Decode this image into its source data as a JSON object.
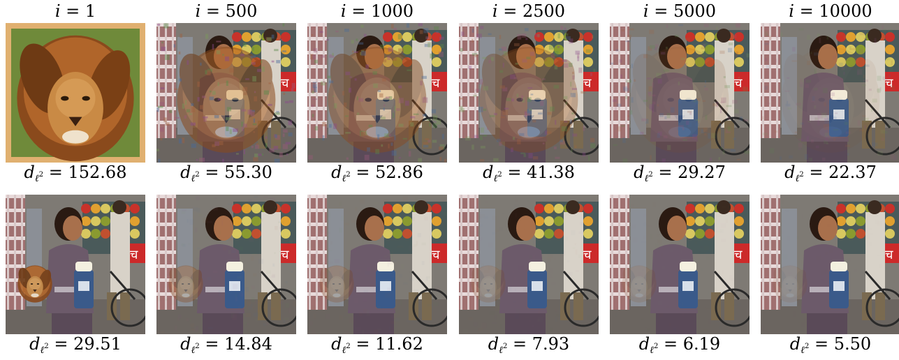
{
  "header": {
    "columns": [
      {
        "var": "i",
        "eq": " = ",
        "value": "1"
      },
      {
        "var": "i",
        "eq": " = ",
        "value": "500"
      },
      {
        "var": "i",
        "eq": " = ",
        "value": "1000"
      },
      {
        "var": "i",
        "eq": " = ",
        "value": "2500"
      },
      {
        "var": "i",
        "eq": " = ",
        "value": "5000"
      },
      {
        "var": "i",
        "eq": " = ",
        "value": "10000"
      }
    ]
  },
  "distance_label": {
    "symbol": "d",
    "sub": "ℓ",
    "sup": "2",
    "eq": " = "
  },
  "rows": [
    {
      "tiles": [
        {
          "kind": "lion",
          "distance": "152.68"
        },
        {
          "kind": "blend",
          "lion_opacity": 0.55,
          "noise": 0.75,
          "distance": "55.30"
        },
        {
          "kind": "blend",
          "lion_opacity": 0.45,
          "noise": 0.65,
          "distance": "52.86"
        },
        {
          "kind": "blend",
          "lion_opacity": 0.35,
          "noise": 0.55,
          "distance": "41.38"
        },
        {
          "kind": "blend",
          "lion_opacity": 0.12,
          "noise": 0.35,
          "distance": "29.27"
        },
        {
          "kind": "blend",
          "lion_opacity": 0.06,
          "noise": 0.22,
          "distance": "22.37"
        }
      ]
    },
    {
      "tiles": [
        {
          "kind": "blend",
          "lion_opacity": 0.0,
          "noise": 0.0,
          "lion_patch": 0.9,
          "distance": "29.51"
        },
        {
          "kind": "blend",
          "lion_opacity": 0.0,
          "noise": 0.08,
          "lion_patch": 0.35,
          "distance": "14.84"
        },
        {
          "kind": "blend",
          "lion_opacity": 0.0,
          "noise": 0.05,
          "lion_patch": 0.25,
          "distance": "11.62"
        },
        {
          "kind": "blend",
          "lion_opacity": 0.0,
          "noise": 0.03,
          "lion_patch": 0.18,
          "distance": "7.93"
        },
        {
          "kind": "blend",
          "lion_opacity": 0.0,
          "noise": 0.02,
          "lion_patch": 0.14,
          "distance": "6.19"
        },
        {
          "kind": "blend",
          "lion_opacity": 0.0,
          "noise": 0.01,
          "lion_patch": 0.1,
          "distance": "5.50"
        }
      ]
    }
  ]
}
